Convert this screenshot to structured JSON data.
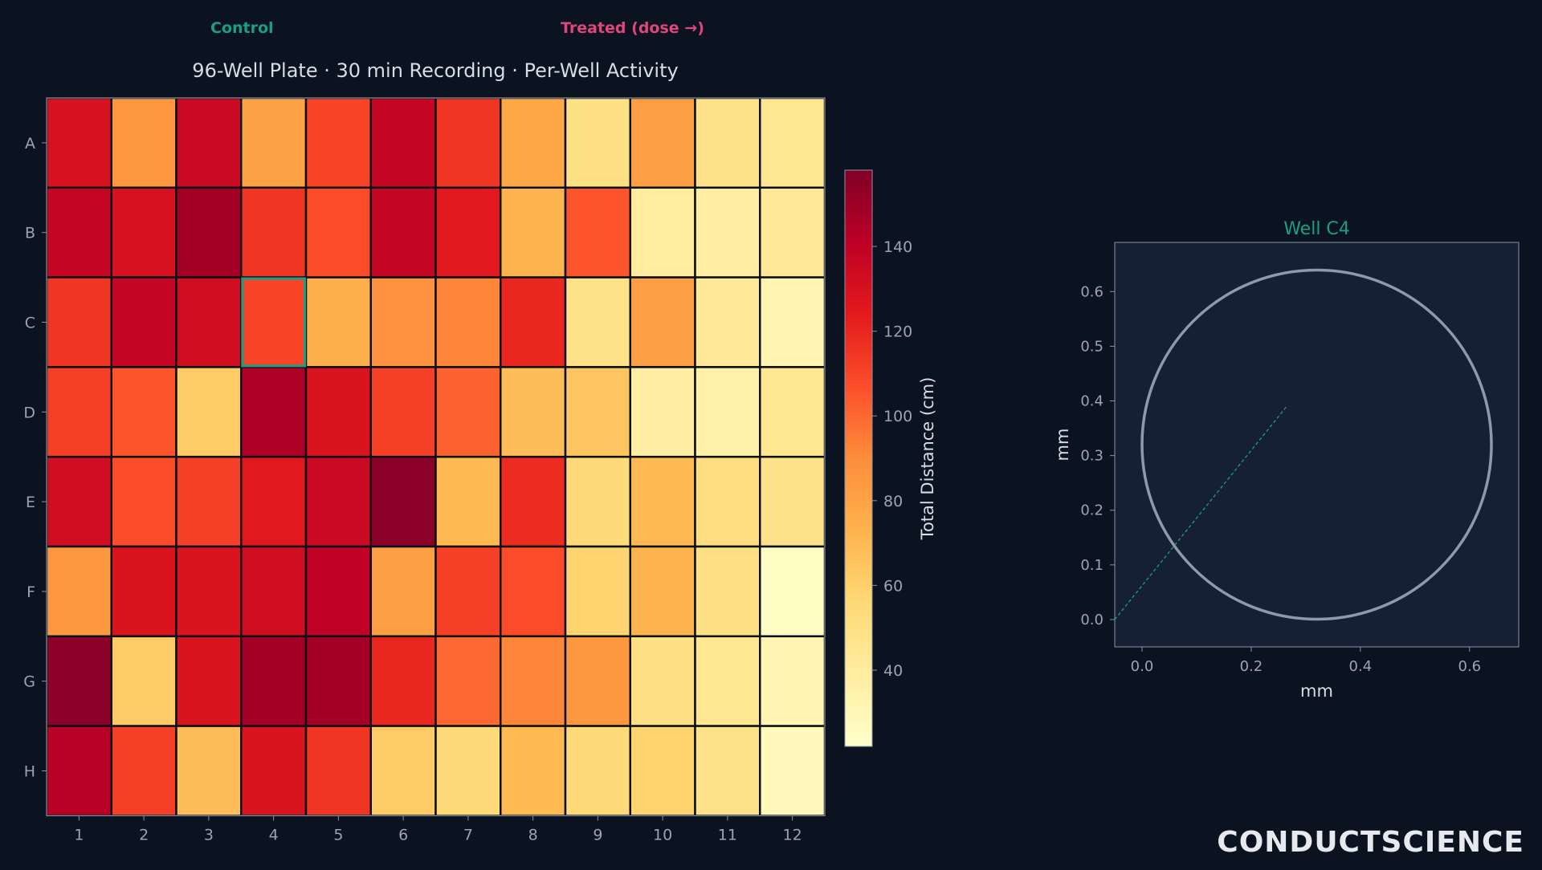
{
  "legend": {
    "control_label": "Control",
    "treated_label": "Treated (dose →)",
    "control_color": "#1b9e86",
    "treated_color": "#e0457b"
  },
  "title": "96-Well Plate · 30 min Recording · Per-Well Activity",
  "brand": "CONDUCTSCIENCE",
  "chart_data": [
    {
      "type": "heatmap",
      "title": "96-Well Plate · 30 min Recording · Per-Well Activity",
      "rows": [
        "A",
        "B",
        "C",
        "D",
        "E",
        "F",
        "G",
        "H"
      ],
      "columns": [
        "1",
        "2",
        "3",
        "4",
        "5",
        "6",
        "7",
        "8",
        "9",
        "10",
        "11",
        "12"
      ],
      "values": [
        [
          130,
          85,
          135,
          80,
          110,
          138,
          115,
          78,
          50,
          82,
          48,
          45
        ],
        [
          138,
          130,
          148,
          115,
          108,
          138,
          125,
          72,
          105,
          40,
          38,
          42
        ],
        [
          115,
          138,
          132,
          110,
          75,
          88,
          92,
          120,
          48,
          82,
          42,
          32
        ],
        [
          112,
          105,
          62,
          145,
          128,
          112,
          102,
          68,
          65,
          38,
          35,
          45
        ],
        [
          132,
          108,
          112,
          125,
          135,
          155,
          70,
          118,
          55,
          70,
          52,
          48
        ],
        [
          85,
          128,
          128,
          132,
          140,
          82,
          112,
          108,
          58,
          72,
          50,
          25
        ],
        [
          155,
          62,
          128,
          148,
          148,
          120,
          100,
          92,
          85,
          50,
          45,
          32
        ],
        [
          142,
          112,
          68,
          128,
          115,
          62,
          55,
          70,
          55,
          58,
          48,
          28
        ]
      ],
      "highlight": {
        "row": "C",
        "column": "4",
        "color": "#1b9e86"
      },
      "colorbar": {
        "label": "Total Distance (cm)",
        "range": [
          22,
          158
        ],
        "ticks": [
          40,
          60,
          80,
          100,
          120,
          140
        ]
      },
      "colormap": "YlOrRd"
    },
    {
      "type": "line",
      "title": "Well C4",
      "title_color": "#1b9e86",
      "xlabel": "mm",
      "ylabel": "mm",
      "xlim": [
        -0.05,
        0.69
      ],
      "ylim": [
        -0.05,
        0.69
      ],
      "xticks": [
        "0.0",
        "0.2",
        "0.4",
        "0.6"
      ],
      "yticks": [
        "0.0",
        "0.1",
        "0.2",
        "0.3",
        "0.4",
        "0.5",
        "0.6"
      ],
      "well_circle": {
        "cx": 0.32,
        "cy": 0.32,
        "r": 0.32
      },
      "series": [
        {
          "x": [
            -0.05,
            0.265
          ],
          "y": [
            0.0,
            0.39
          ],
          "color": "#1b9e86"
        }
      ]
    }
  ]
}
